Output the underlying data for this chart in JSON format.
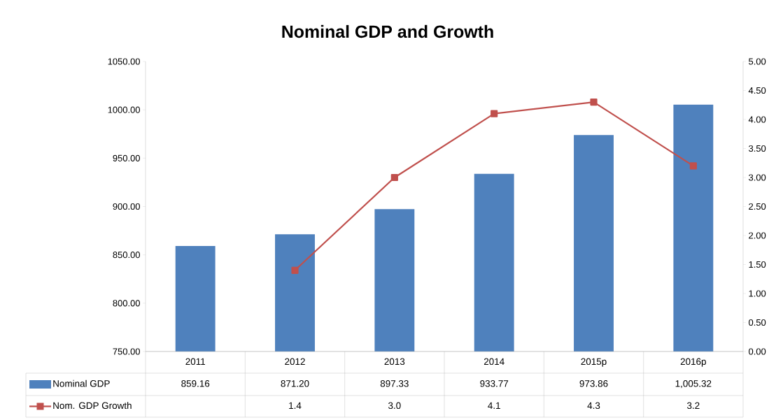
{
  "chart_data": {
    "type": "bar",
    "title": "Nominal GDP and Growth",
    "categories": [
      "2011",
      "2012",
      "2013",
      "2014",
      "2015p",
      "2016p"
    ],
    "series": [
      {
        "name": "Nominal GDP",
        "color": "#4f81bd",
        "values": [
          859.16,
          871.2,
          897.33,
          933.77,
          973.86,
          1005.32
        ],
        "value_labels": [
          "859.16",
          "871.20",
          "897.33",
          "933.77",
          "973.86",
          "1,005.32"
        ]
      },
      {
        "name": "Nom. GDP Growth",
        "type": "line",
        "axis": "y2",
        "color": "#c0504d",
        "values": [
          null,
          1.4,
          3.0,
          4.1,
          4.3,
          3.2
        ],
        "value_labels": [
          null,
          "1.4",
          "3.0",
          "4.1",
          "4.3",
          "3.2"
        ]
      }
    ],
    "ylim": [
      750,
      1050
    ],
    "yticks": [
      {
        "value": 750,
        "label": "750.00"
      },
      {
        "value": 800,
        "label": "800.00"
      },
      {
        "value": 850,
        "label": "850.00"
      },
      {
        "value": 900,
        "label": "900.00"
      },
      {
        "value": 950,
        "label": "950.00"
      },
      {
        "value": 1000,
        "label": "1000.00"
      },
      {
        "value": 1050,
        "label": "1050.00"
      }
    ],
    "y2lim": [
      0,
      5
    ],
    "y2ticks": [
      {
        "value": 0,
        "label": "0.00"
      },
      {
        "value": 0.5,
        "label": "0.50"
      },
      {
        "value": 1,
        "label": "1.00"
      },
      {
        "value": 1.5,
        "label": "1.50"
      },
      {
        "value": 2,
        "label": "2.00"
      },
      {
        "value": 2.5,
        "label": "2.50"
      },
      {
        "value": 3,
        "label": "3.00"
      },
      {
        "value": 3.5,
        "label": "3.50"
      },
      {
        "value": 4,
        "label": "4.00"
      },
      {
        "value": 4.5,
        "label": "4.50"
      },
      {
        "value": 5,
        "label": "5.00"
      }
    ],
    "legend": "bottom",
    "marker": "square"
  }
}
